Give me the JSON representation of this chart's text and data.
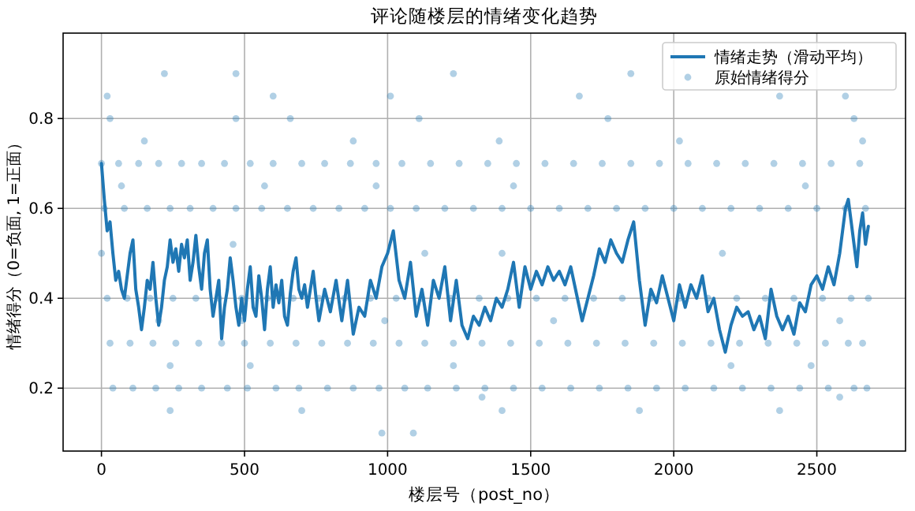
{
  "chart_data": {
    "type": "line",
    "title": "评论随楼层的情绪变化趋势",
    "xlabel": "楼层号（post_no）",
    "ylabel": "情绪得分（0=负面, 1=正面）",
    "xlim": [
      -134,
      2810
    ],
    "ylim": [
      0.06,
      0.99
    ],
    "xticks": [
      0,
      500,
      1000,
      1500,
      2000,
      2500
    ],
    "yticks": [
      0.2,
      0.4,
      0.6,
      0.8
    ],
    "grid": true,
    "legend": "top right",
    "series": [
      {
        "name": "情绪走势（滑动平均）",
        "color": "#1f77b4",
        "line_style": "solid",
        "marker": "none",
        "x": [
          0,
          10,
          20,
          30,
          40,
          50,
          60,
          70,
          80,
          90,
          100,
          110,
          120,
          130,
          140,
          150,
          160,
          170,
          180,
          190,
          200,
          210,
          220,
          230,
          240,
          250,
          260,
          270,
          280,
          290,
          300,
          310,
          320,
          330,
          340,
          350,
          360,
          370,
          380,
          390,
          400,
          410,
          420,
          430,
          440,
          450,
          460,
          470,
          480,
          490,
          500,
          510,
          520,
          530,
          540,
          550,
          560,
          570,
          580,
          590,
          600,
          610,
          620,
          630,
          640,
          650,
          660,
          670,
          680,
          690,
          700,
          710,
          720,
          730,
          740,
          750,
          760,
          780,
          800,
          820,
          840,
          860,
          880,
          900,
          920,
          940,
          960,
          980,
          1000,
          1020,
          1040,
          1060,
          1080,
          1100,
          1120,
          1140,
          1160,
          1180,
          1200,
          1220,
          1240,
          1260,
          1280,
          1300,
          1320,
          1340,
          1360,
          1380,
          1400,
          1420,
          1440,
          1460,
          1480,
          1500,
          1520,
          1540,
          1560,
          1580,
          1600,
          1620,
          1640,
          1660,
          1680,
          1700,
          1720,
          1740,
          1760,
          1780,
          1800,
          1820,
          1840,
          1860,
          1880,
          1900,
          1920,
          1940,
          1960,
          1980,
          2000,
          2020,
          2040,
          2060,
          2080,
          2100,
          2120,
          2140,
          2160,
          2180,
          2200,
          2220,
          2240,
          2260,
          2280,
          2300,
          2320,
          2340,
          2360,
          2380,
          2400,
          2420,
          2440,
          2460,
          2480,
          2500,
          2520,
          2540,
          2560,
          2580,
          2600,
          2610,
          2620,
          2640,
          2650,
          2660,
          2670,
          2680
        ],
        "values": [
          0.7,
          0.62,
          0.55,
          0.57,
          0.5,
          0.44,
          0.46,
          0.42,
          0.4,
          0.45,
          0.5,
          0.53,
          0.42,
          0.38,
          0.33,
          0.38,
          0.44,
          0.42,
          0.48,
          0.4,
          0.34,
          0.38,
          0.44,
          0.47,
          0.53,
          0.48,
          0.51,
          0.46,
          0.52,
          0.49,
          0.53,
          0.44,
          0.48,
          0.54,
          0.47,
          0.42,
          0.5,
          0.53,
          0.42,
          0.36,
          0.4,
          0.44,
          0.31,
          0.38,
          0.42,
          0.49,
          0.44,
          0.38,
          0.34,
          0.4,
          0.35,
          0.42,
          0.47,
          0.38,
          0.36,
          0.45,
          0.4,
          0.33,
          0.42,
          0.47,
          0.38,
          0.43,
          0.39,
          0.44,
          0.36,
          0.34,
          0.41,
          0.46,
          0.49,
          0.42,
          0.4,
          0.43,
          0.38,
          0.42,
          0.46,
          0.4,
          0.35,
          0.42,
          0.37,
          0.44,
          0.35,
          0.44,
          0.32,
          0.38,
          0.36,
          0.44,
          0.4,
          0.47,
          0.5,
          0.55,
          0.44,
          0.4,
          0.48,
          0.36,
          0.42,
          0.34,
          0.44,
          0.4,
          0.47,
          0.35,
          0.44,
          0.34,
          0.31,
          0.36,
          0.34,
          0.38,
          0.35,
          0.4,
          0.38,
          0.42,
          0.48,
          0.38,
          0.47,
          0.42,
          0.46,
          0.43,
          0.47,
          0.44,
          0.46,
          0.43,
          0.47,
          0.41,
          0.35,
          0.4,
          0.45,
          0.51,
          0.48,
          0.53,
          0.5,
          0.48,
          0.53,
          0.57,
          0.44,
          0.34,
          0.42,
          0.39,
          0.45,
          0.4,
          0.35,
          0.43,
          0.38,
          0.43,
          0.4,
          0.45,
          0.37,
          0.4,
          0.33,
          0.28,
          0.34,
          0.38,
          0.36,
          0.37,
          0.33,
          0.36,
          0.31,
          0.42,
          0.36,
          0.33,
          0.36,
          0.32,
          0.39,
          0.37,
          0.43,
          0.45,
          0.42,
          0.47,
          0.43,
          0.5,
          0.6,
          0.62,
          0.57,
          0.47,
          0.55,
          0.59,
          0.52,
          0.56
        ]
      },
      {
        "name": "原始情绪得分",
        "type": "scatter",
        "color": "#1f77b4",
        "marker": "circle",
        "x": [
          0,
          60,
          130,
          200,
          280,
          350,
          430,
          520,
          600,
          700,
          780,
          870,
          960,
          1050,
          1150,
          1250,
          1350,
          1450,
          1550,
          1650,
          1750,
          1850,
          1950,
          2050,
          2150,
          2250,
          2350,
          2450,
          2550,
          2650,
          10,
          80,
          160,
          240,
          310,
          390,
          470,
          560,
          650,
          740,
          830,
          920,
          1010,
          1100,
          1200,
          1300,
          1400,
          1500,
          1600,
          1700,
          1800,
          1900,
          2000,
          2100,
          2200,
          2300,
          2400,
          2500,
          2600,
          2670,
          20,
          90,
          170,
          250,
          330,
          410,
          490,
          580,
          670,
          760,
          850,
          940,
          1030,
          1120,
          1220,
          1320,
          1420,
          1520,
          1620,
          1720,
          1820,
          1920,
          2020,
          2120,
          2220,
          2320,
          2420,
          2520,
          2620,
          2680,
          30,
          100,
          180,
          260,
          340,
          420,
          500,
          590,
          680,
          770,
          860,
          950,
          1040,
          1130,
          1230,
          1330,
          1430,
          1530,
          1630,
          1730,
          1830,
          1930,
          2030,
          2130,
          2230,
          2330,
          2430,
          2530,
          2610,
          2660,
          40,
          110,
          190,
          270,
          350,
          440,
          510,
          610,
          690,
          790,
          880,
          970,
          1060,
          1140,
          1240,
          1340,
          1440,
          1540,
          1640,
          1740,
          1840,
          1940,
          2040,
          2140,
          2240,
          2340,
          2440,
          2540,
          2630,
          2675,
          220,
          470,
          1230,
          1850,
          20,
          600,
          1010,
          1670,
          2370,
          2600,
          30,
          470,
          660,
          1110,
          1770,
          2630,
          150,
          880,
          1390,
          2020,
          2660,
          70,
          570,
          960,
          1440,
          2460,
          0,
          460,
          1130,
          1400,
          2170,
          200,
          490,
          990,
          1580,
          2580,
          240,
          520,
          1230,
          2200,
          2480,
          240,
          700,
          1400,
          1880,
          2370,
          980,
          1090,
          2580,
          1330
        ],
        "values": [
          0.7,
          0.7,
          0.7,
          0.7,
          0.7,
          0.7,
          0.7,
          0.7,
          0.7,
          0.7,
          0.7,
          0.7,
          0.7,
          0.7,
          0.7,
          0.7,
          0.7,
          0.7,
          0.7,
          0.7,
          0.7,
          0.7,
          0.7,
          0.7,
          0.7,
          0.7,
          0.7,
          0.7,
          0.7,
          0.7,
          0.6,
          0.6,
          0.6,
          0.6,
          0.6,
          0.6,
          0.6,
          0.6,
          0.6,
          0.6,
          0.6,
          0.6,
          0.6,
          0.6,
          0.6,
          0.6,
          0.6,
          0.6,
          0.6,
          0.6,
          0.6,
          0.6,
          0.6,
          0.6,
          0.6,
          0.6,
          0.6,
          0.6,
          0.6,
          0.6,
          0.4,
          0.4,
          0.4,
          0.4,
          0.4,
          0.4,
          0.4,
          0.4,
          0.4,
          0.4,
          0.4,
          0.4,
          0.4,
          0.4,
          0.4,
          0.4,
          0.4,
          0.4,
          0.4,
          0.4,
          0.4,
          0.4,
          0.4,
          0.4,
          0.4,
          0.4,
          0.4,
          0.4,
          0.4,
          0.4,
          0.3,
          0.3,
          0.3,
          0.3,
          0.3,
          0.3,
          0.3,
          0.3,
          0.3,
          0.3,
          0.3,
          0.3,
          0.3,
          0.3,
          0.3,
          0.3,
          0.3,
          0.3,
          0.3,
          0.3,
          0.3,
          0.3,
          0.3,
          0.3,
          0.3,
          0.3,
          0.3,
          0.3,
          0.3,
          0.3,
          0.2,
          0.2,
          0.2,
          0.2,
          0.2,
          0.2,
          0.2,
          0.2,
          0.2,
          0.2,
          0.2,
          0.2,
          0.2,
          0.2,
          0.2,
          0.2,
          0.2,
          0.2,
          0.2,
          0.2,
          0.2,
          0.2,
          0.2,
          0.2,
          0.2,
          0.2,
          0.2,
          0.2,
          0.2,
          0.2,
          0.9,
          0.9,
          0.9,
          0.9,
          0.85,
          0.85,
          0.85,
          0.85,
          0.85,
          0.85,
          0.8,
          0.8,
          0.8,
          0.8,
          0.8,
          0.8,
          0.75,
          0.75,
          0.75,
          0.75,
          0.75,
          0.65,
          0.65,
          0.65,
          0.65,
          0.65,
          0.5,
          0.52,
          0.5,
          0.5,
          0.5,
          0.35,
          0.35,
          0.35,
          0.35,
          0.35,
          0.25,
          0.25,
          0.25,
          0.25,
          0.25,
          0.15,
          0.15,
          0.15,
          0.15,
          0.15,
          0.1,
          0.1,
          0.18,
          0.18
        ]
      }
    ]
  }
}
